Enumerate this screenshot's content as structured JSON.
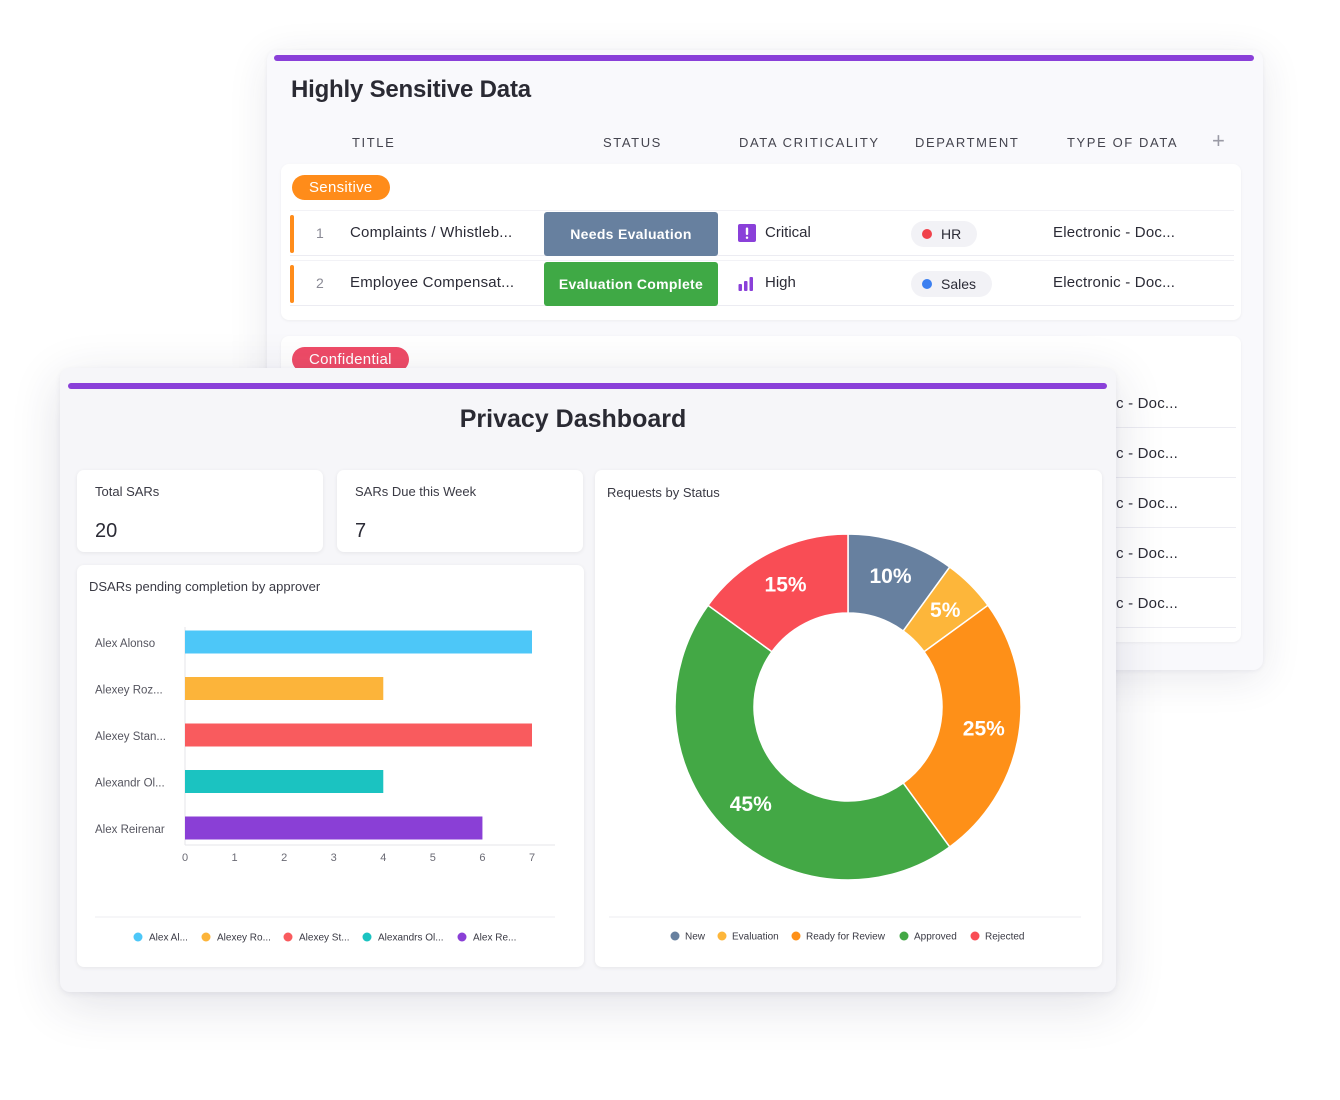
{
  "table": {
    "title": "Highly Sensitive Data",
    "columns": [
      "TITLE",
      "STATUS",
      "DATA CRITICALITY",
      "DEPARTMENT",
      "TYPE OF DATA"
    ],
    "add_column_icon": "plus-icon",
    "groups": [
      {
        "name": "Sensitive",
        "color": "#ff8c1a",
        "rows": [
          {
            "num": "1",
            "title": "Complaints / Whistleb...",
            "status": "Needs Evaluation",
            "status_color": "#67809f",
            "criticality": "Critical",
            "criticality_icon": "exclamation-icon",
            "criticality_color": "#8a40d9",
            "department": "HR",
            "department_color": "#f0424b",
            "type": "Electronic - Doc..."
          },
          {
            "num": "2",
            "title": "Employee Compensat...",
            "status": "Evaluation Complete",
            "status_color": "#3fa945",
            "criticality": "High",
            "criticality_icon": "signal-bars-icon",
            "criticality_color": "#8a40d9",
            "department": "Sales",
            "department_color": "#3b7ff0",
            "type": "Electronic - Doc..."
          }
        ]
      },
      {
        "name": "Confidential",
        "color": "#ef4b67",
        "rows_partial": [
          "c - Doc...",
          "c - Doc...",
          "c - Doc...",
          "c - Doc...",
          "c - Doc..."
        ]
      }
    ]
  },
  "dashboard": {
    "title": "Privacy Dashboard",
    "tiles": [
      {
        "label": "Total SARs",
        "value": "20"
      },
      {
        "label": "SARs Due this Week",
        "value": "7"
      }
    ],
    "bar_panel_title": "DSARs pending completion by approver",
    "pie_panel_title": "Requests by Status"
  },
  "chart_data": [
    {
      "type": "bar",
      "orientation": "horizontal",
      "title": "DSARs pending completion by approver",
      "categories": [
        "Alex Alonso",
        "Alexey Roz...",
        "Alexey Stan...",
        "Alexandr Ol...",
        "Alex Reirenar"
      ],
      "values": [
        7,
        4,
        7,
        4,
        6
      ],
      "colors": [
        "#4dc7f8",
        "#fcb43a",
        "#f95b5e",
        "#1bc3c1",
        "#8a3fd6"
      ],
      "xlim": [
        0,
        7
      ],
      "xticks": [
        "0",
        "1",
        "2",
        "3",
        "4",
        "5",
        "6",
        "7"
      ],
      "legend": [
        "Alex Al...",
        "Alexey Ro...",
        "Alexey St...",
        "Alexandrs Ol...",
        "Alex Re..."
      ],
      "legend_position": "bottom"
    },
    {
      "type": "pie",
      "variant": "donut",
      "title": "Requests by Status",
      "slices": [
        {
          "name": "New",
          "value": 10,
          "label": "10%",
          "color": "#67809f"
        },
        {
          "name": "Evaluation",
          "value": 5,
          "label": "5%",
          "color": "#fdb63a"
        },
        {
          "name": "Ready for Review",
          "value": 25,
          "label": "25%",
          "color": "#fe9018"
        },
        {
          "name": "Approved",
          "value": 45,
          "label": "45%",
          "color": "#43a845"
        },
        {
          "name": "Rejected",
          "value": 15,
          "label": "15%",
          "color": "#f94d55"
        }
      ],
      "legend_position": "bottom"
    }
  ]
}
